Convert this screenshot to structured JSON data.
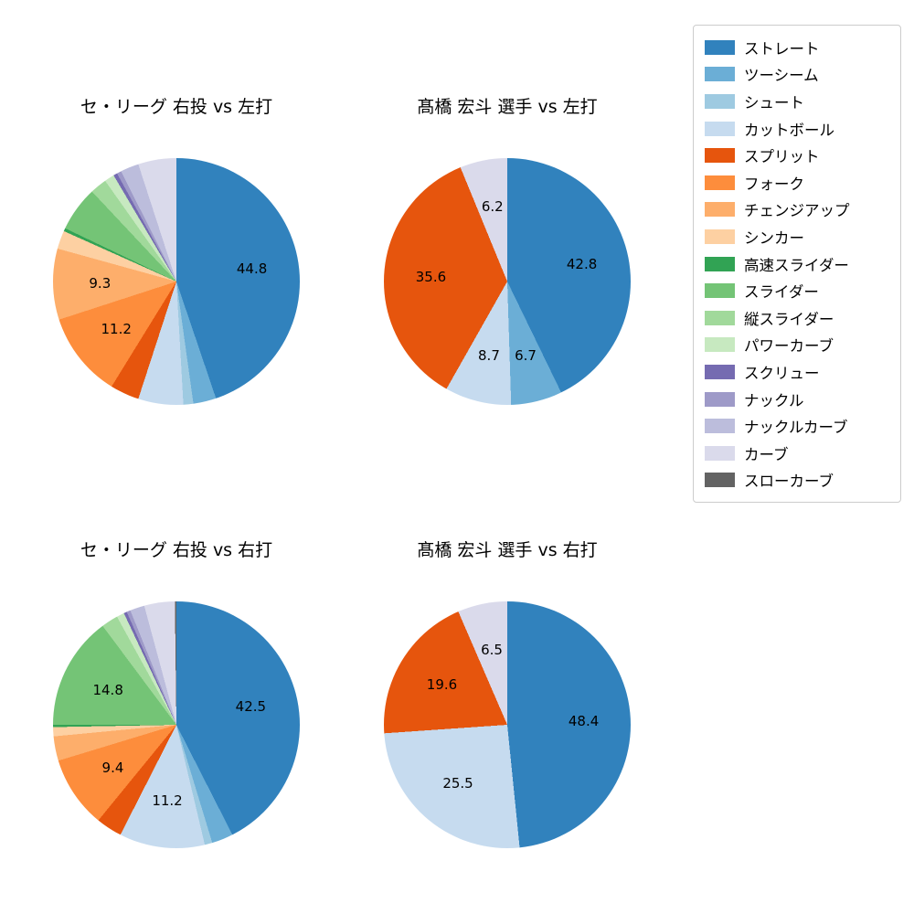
{
  "colors": {
    "ストレート": "#3182bd",
    "ツーシーム": "#6baed6",
    "シュート": "#9ecae1",
    "カットボール": "#c6dbef",
    "スプリット": "#e6550d",
    "フォーク": "#fd8d3c",
    "チェンジアップ": "#fdae6b",
    "シンカー": "#fdd0a2",
    "高速スライダー": "#31a354",
    "スライダー": "#74c476",
    "縦スライダー": "#a1d99b",
    "パワーカーブ": "#c7e9c0",
    "スクリュー": "#756bb1",
    "ナックル": "#9e9ac8",
    "ナックルカーブ": "#bcbddc",
    "カーブ": "#dadaeb",
    "スローカーブ": "#636363"
  },
  "legend": {
    "items": [
      "ストレート",
      "ツーシーム",
      "シュート",
      "カットボール",
      "スプリット",
      "フォーク",
      "チェンジアップ",
      "シンカー",
      "高速スライダー",
      "スライダー",
      "縦スライダー",
      "パワーカーブ",
      "スクリュー",
      "ナックル",
      "ナックルカーブ",
      "カーブ",
      "スローカーブ"
    ]
  },
  "chart_data": [
    {
      "type": "pie",
      "title": "セ・リーグ 右投 vs 左打",
      "start_angle": "top",
      "direction": "clockwise",
      "label_threshold": 6.0,
      "labeled_values": [
        44.8,
        11.2,
        9.3
      ],
      "slices": [
        {
          "name": "ストレート",
          "value": 44.8
        },
        {
          "name": "ツーシーム",
          "value": 3.0
        },
        {
          "name": "シュート",
          "value": 1.3
        },
        {
          "name": "カットボール",
          "value": 5.9
        },
        {
          "name": "スプリット",
          "value": 3.8
        },
        {
          "name": "フォーク",
          "value": 11.2
        },
        {
          "name": "チェンジアップ",
          "value": 9.3
        },
        {
          "name": "シンカー",
          "value": 2.4
        },
        {
          "name": "高速スライダー",
          "value": 0.4
        },
        {
          "name": "スライダー",
          "value": 5.9
        },
        {
          "name": "縦スライダー",
          "value": 2.2
        },
        {
          "name": "パワーカーブ",
          "value": 1.3
        },
        {
          "name": "スクリュー",
          "value": 0.5
        },
        {
          "name": "ナックル",
          "value": 0.6
        },
        {
          "name": "ナックルカーブ",
          "value": 2.4
        },
        {
          "name": "カーブ",
          "value": 5.0
        }
      ]
    },
    {
      "type": "pie",
      "title": "髙橋 宏斗 選手 vs 左打",
      "start_angle": "top",
      "direction": "clockwise",
      "label_threshold": 6.0,
      "labeled_values": [
        42.8,
        6.7,
        8.7,
        35.6,
        6.2
      ],
      "slices": [
        {
          "name": "ストレート",
          "value": 42.8
        },
        {
          "name": "ツーシーム",
          "value": 6.7
        },
        {
          "name": "カットボール",
          "value": 8.7
        },
        {
          "name": "スプリット",
          "value": 35.6
        },
        {
          "name": "カーブ",
          "value": 6.2
        }
      ]
    },
    {
      "type": "pie",
      "title": "セ・リーグ 右投 vs 右打",
      "start_angle": "top",
      "direction": "clockwise",
      "label_threshold": 6.0,
      "labeled_values": [
        42.5,
        11.2,
        9.4,
        14.8
      ],
      "slices": [
        {
          "name": "ストレート",
          "value": 42.5
        },
        {
          "name": "ツーシーム",
          "value": 2.8
        },
        {
          "name": "シュート",
          "value": 1.0
        },
        {
          "name": "カットボール",
          "value": 11.2
        },
        {
          "name": "スプリット",
          "value": 3.4
        },
        {
          "name": "フォーク",
          "value": 9.4
        },
        {
          "name": "チェンジアップ",
          "value": 3.2
        },
        {
          "name": "シンカー",
          "value": 1.2
        },
        {
          "name": "高速スライダー",
          "value": 0.3
        },
        {
          "name": "スライダー",
          "value": 14.8
        },
        {
          "name": "縦スライダー",
          "value": 2.2
        },
        {
          "name": "パワーカーブ",
          "value": 1.0
        },
        {
          "name": "スクリュー",
          "value": 0.4
        },
        {
          "name": "ナックル",
          "value": 0.5
        },
        {
          "name": "ナックルカーブ",
          "value": 1.9
        },
        {
          "name": "カーブ",
          "value": 4.0
        },
        {
          "name": "スローカーブ",
          "value": 0.2
        }
      ]
    },
    {
      "type": "pie",
      "title": "髙橋 宏斗 選手 vs 右打",
      "start_angle": "top",
      "direction": "clockwise",
      "label_threshold": 6.0,
      "labeled_values": [
        48.4,
        25.5,
        19.6,
        6.5
      ],
      "slices": [
        {
          "name": "ストレート",
          "value": 48.4
        },
        {
          "name": "カットボール",
          "value": 25.5
        },
        {
          "name": "スプリット",
          "value": 19.6
        },
        {
          "name": "カーブ",
          "value": 6.5
        }
      ]
    }
  ]
}
